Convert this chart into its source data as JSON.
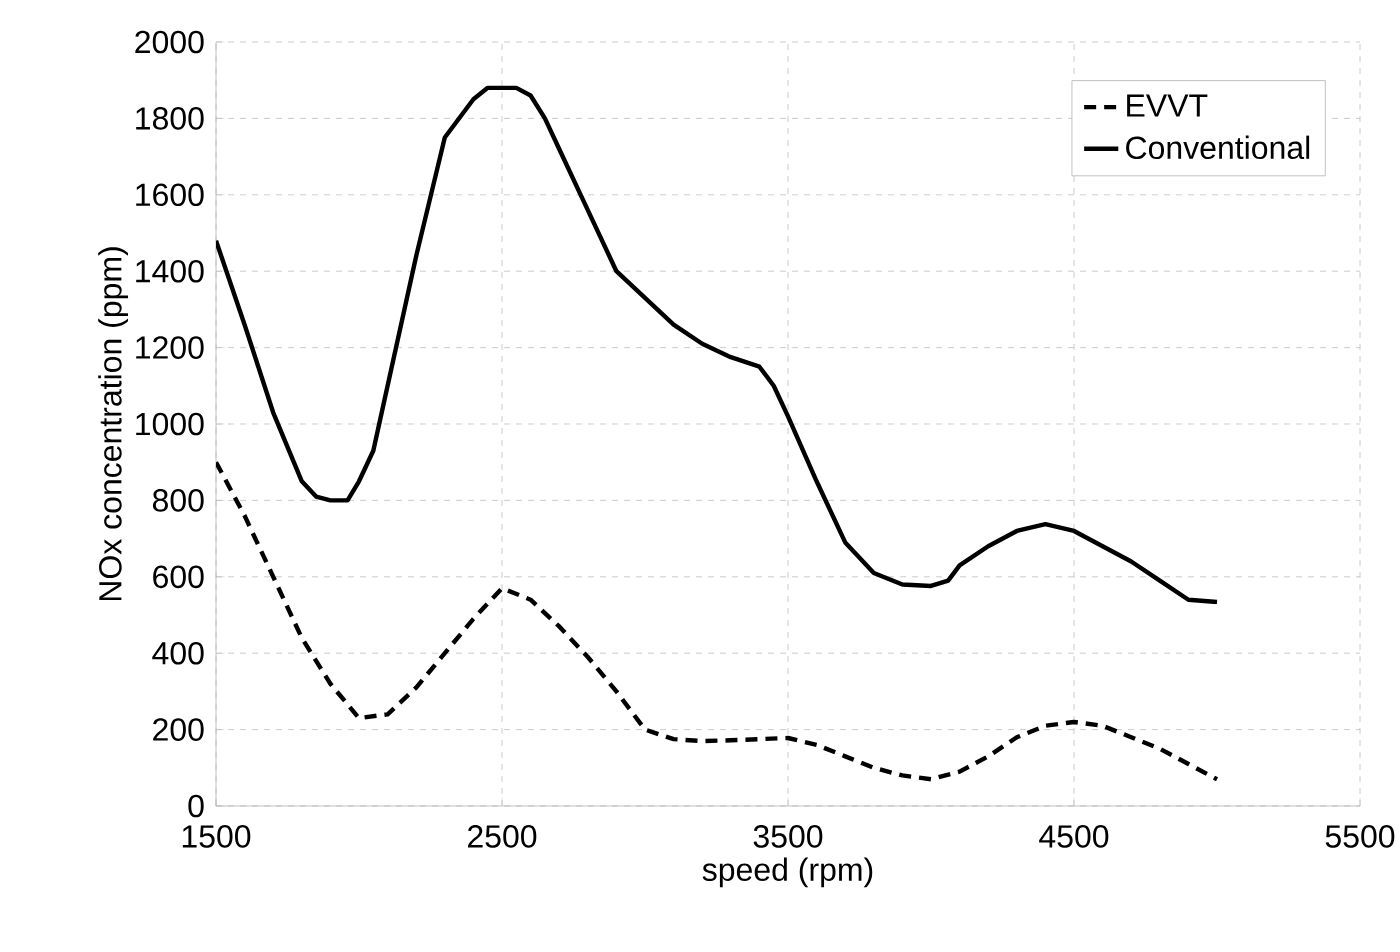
{
  "chart_data": {
    "type": "line",
    "xlabel": "speed (rpm)",
    "ylabel": "NOx concentration (ppm)",
    "xlim": [
      1500,
      5500
    ],
    "ylim": [
      0,
      2000
    ],
    "xticks": [
      1500,
      2500,
      3500,
      4500,
      5500
    ],
    "yticks": [
      0,
      200,
      400,
      600,
      800,
      1000,
      1200,
      1400,
      1600,
      1800,
      2000
    ],
    "grid": true,
    "legend": "top right",
    "series": [
      {
        "name": "EVVT",
        "color": "#000000",
        "line_style": "dashed",
        "x": [
          1500,
          1600,
          1700,
          1800,
          1900,
          2000,
          2100,
          2200,
          2300,
          2400,
          2500,
          2600,
          2700,
          2800,
          2900,
          3000,
          3100,
          3200,
          3300,
          3400,
          3500,
          3600,
          3700,
          3800,
          3900,
          4000,
          4100,
          4200,
          4300,
          4400,
          4500,
          4600,
          4700,
          4800,
          4900,
          5000
        ],
        "values": [
          900,
          760,
          600,
          440,
          320,
          230,
          240,
          310,
          400,
          490,
          570,
          540,
          470,
          390,
          300,
          200,
          175,
          170,
          172,
          175,
          178,
          160,
          130,
          100,
          80,
          70,
          90,
          130,
          180,
          210,
          220,
          210,
          180,
          150,
          110,
          70
        ]
      },
      {
        "name": "Conventional",
        "color": "#000000",
        "line_style": "solid",
        "x": [
          1500,
          1600,
          1700,
          1800,
          1850,
          1900,
          1960,
          2000,
          2050,
          2100,
          2200,
          2300,
          2400,
          2450,
          2500,
          2550,
          2600,
          2650,
          2700,
          2800,
          2900,
          3000,
          3100,
          3200,
          3300,
          3400,
          3450,
          3500,
          3600,
          3700,
          3800,
          3900,
          4000,
          4060,
          4100,
          4200,
          4300,
          4400,
          4500,
          4600,
          4700,
          4800,
          4900,
          5000
        ],
        "values": [
          1480,
          1260,
          1030,
          850,
          810,
          800,
          800,
          850,
          930,
          1100,
          1440,
          1750,
          1850,
          1880,
          1880,
          1880,
          1860,
          1800,
          1720,
          1560,
          1400,
          1330,
          1260,
          1210,
          1175,
          1150,
          1100,
          1020,
          850,
          690,
          610,
          580,
          576,
          590,
          630,
          680,
          720,
          738,
          720,
          680,
          640,
          590,
          540,
          534
        ]
      }
    ]
  }
}
